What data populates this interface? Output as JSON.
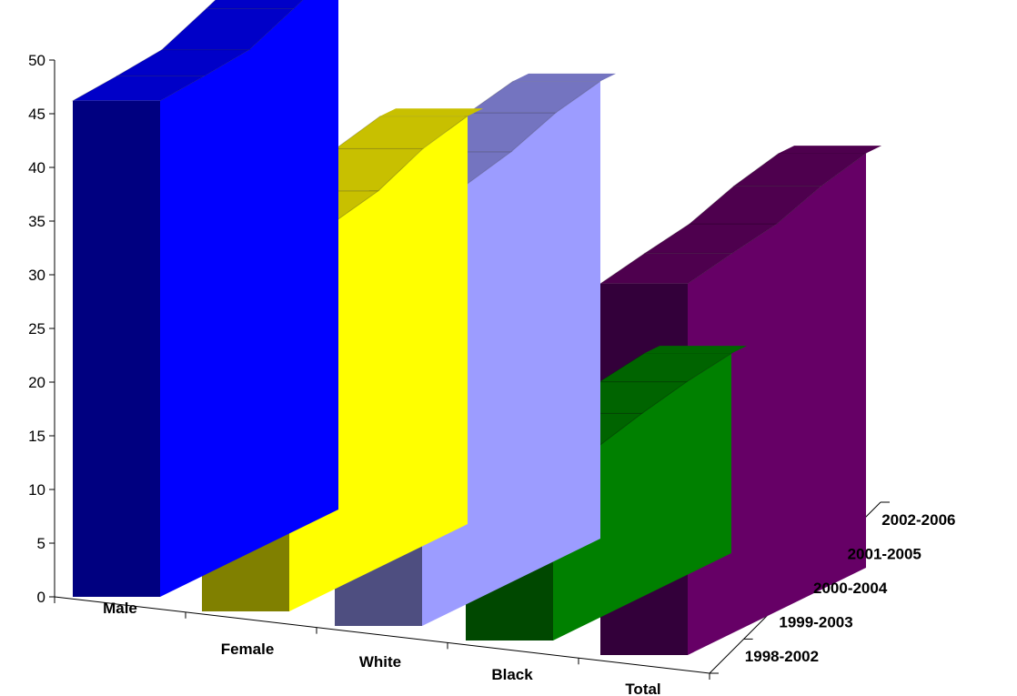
{
  "chart_data": {
    "type": "bar",
    "title": "",
    "xlabel": "",
    "ylabel": "",
    "ylim": [
      0,
      50
    ],
    "y_ticks": [
      "0",
      "5",
      "10",
      "15",
      "20",
      "25",
      "30",
      "35",
      "40",
      "45",
      "50"
    ],
    "categories": [
      "Male",
      "Female",
      "White",
      "Black",
      "Total"
    ],
    "periods": [
      "1998-2002",
      "1999-2003",
      "2000-2004",
      "2001-2005",
      "2002-2006"
    ],
    "series": [
      {
        "category": "Male",
        "values": [
          46.2,
          46.5,
          46.9,
          48.7,
          50.6
        ],
        "front_color": "#000080",
        "side_color": "#0000FF",
        "top_color": "#0000C8"
      },
      {
        "category": "Female",
        "values": [
          33.6,
          34.2,
          35.1,
          37.0,
          38.0
        ],
        "front_color": "#808000",
        "side_color": "#FFFF00",
        "top_color": "#C8C000"
      },
      {
        "category": "White",
        "values": [
          38.4,
          39.1,
          40.1,
          41.7,
          42.6
        ],
        "front_color": "#4E4E80",
        "side_color": "#9C9CFF",
        "top_color": "#7474C0"
      },
      {
        "category": "Black",
        "values": [
          15.6,
          16.0,
          17.1,
          18.0,
          18.6
        ],
        "front_color": "#004800",
        "side_color": "#008000",
        "top_color": "#006400"
      },
      {
        "category": "Total",
        "values": [
          34.6,
          35.4,
          36.1,
          37.6,
          38.6
        ],
        "front_color": "#33003A",
        "side_color": "#660066",
        "top_color": "#4E004E"
      }
    ],
    "grid": false,
    "legend": "none"
  }
}
